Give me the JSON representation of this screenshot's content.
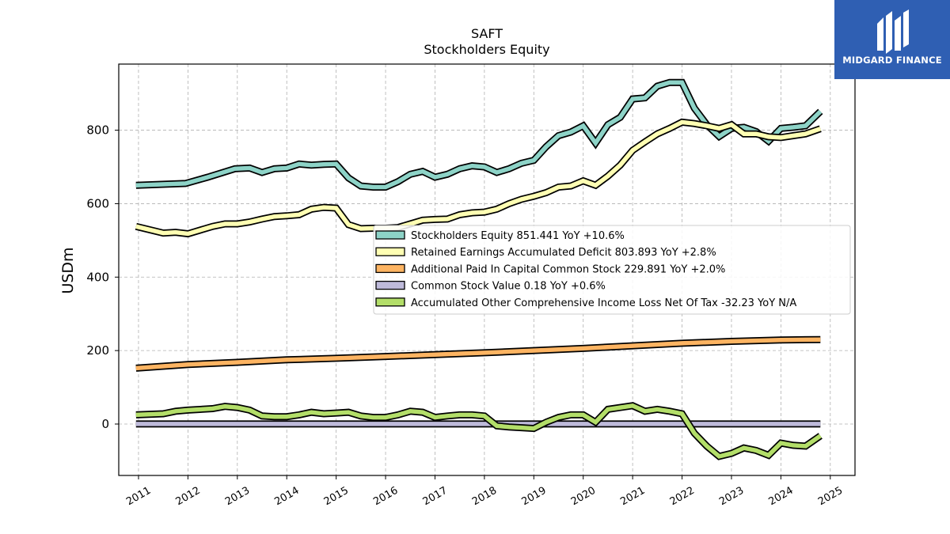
{
  "chart_data": {
    "type": "line",
    "title": "SAFT",
    "subtitle": "Stockholders  Equity",
    "ylabel": "USDm",
    "xlabel": "",
    "xlim": [
      2010.6,
      2025.5
    ],
    "ylim": [
      -140,
      980
    ],
    "x_ticks": [
      "2011",
      "2012",
      "2013",
      "2014",
      "2015",
      "2016",
      "2017",
      "2018",
      "2019",
      "2020",
      "2021",
      "2022",
      "2023",
      "2024",
      "2025"
    ],
    "y_ticks": [
      "0",
      "200",
      "400",
      "600",
      "800"
    ],
    "grid": true,
    "legend_position": "center-right",
    "series": [
      {
        "name": "Stockholders Equity",
        "legend_label": "Stockholders Equity  851.441 YoY +10.6%",
        "color": "#8dd3c7",
        "x": [
          2010.95,
          2011.95,
          2012.4,
          2012.95,
          2013.25,
          2013.5,
          2013.75,
          2014.0,
          2014.25,
          2014.5,
          2014.75,
          2015.0,
          2015.25,
          2015.5,
          2015.75,
          2016.0,
          2016.25,
          2016.5,
          2016.75,
          2017.0,
          2017.25,
          2017.5,
          2017.75,
          2018.0,
          2018.25,
          2018.5,
          2018.75,
          2019.0,
          2019.25,
          2019.5,
          2019.75,
          2020.0,
          2020.25,
          2020.5,
          2020.75,
          2021.0,
          2021.25,
          2021.5,
          2021.75,
          2022.0,
          2022.25,
          2022.5,
          2022.75,
          2023.0,
          2023.25,
          2023.5,
          2023.75,
          2024.0,
          2024.25,
          2024.5,
          2024.8
        ],
        "y": [
          650,
          655,
          672,
          695,
          697,
          685,
          695,
          697,
          708,
          705,
          707,
          708,
          670,
          648,
          645,
          645,
          660,
          680,
          688,
          672,
          680,
          695,
          703,
          700,
          685,
          695,
          710,
          718,
          755,
          785,
          795,
          812,
          765,
          815,
          835,
          885,
          888,
          920,
          930,
          930,
          860,
          815,
          783,
          805,
          808,
          796,
          770,
          805,
          808,
          812,
          851
        ]
      },
      {
        "name": "Retained Earnings Accumulated Deficit",
        "legend_label": "Retained Earnings Accumulated Deficit  803.893 YoY +2.8%",
        "color": "#ffffb3",
        "x": [
          2010.95,
          2011.5,
          2011.75,
          2012.0,
          2012.5,
          2012.75,
          2013.0,
          2013.25,
          2013.5,
          2013.75,
          2014.0,
          2014.25,
          2014.5,
          2014.75,
          2015.0,
          2015.25,
          2015.5,
          2015.75,
          2016.0,
          2016.25,
          2016.5,
          2016.75,
          2017.0,
          2017.25,
          2017.5,
          2017.75,
          2018.0,
          2018.25,
          2018.5,
          2018.75,
          2019.0,
          2019.25,
          2019.5,
          2019.75,
          2020.0,
          2020.25,
          2020.5,
          2020.75,
          2021.0,
          2021.25,
          2021.5,
          2021.75,
          2022.0,
          2022.25,
          2022.5,
          2022.75,
          2023.0,
          2023.25,
          2023.5,
          2023.75,
          2024.0,
          2024.25,
          2024.5,
          2024.8
        ],
        "y": [
          538,
          520,
          522,
          518,
          538,
          545,
          545,
          550,
          558,
          565,
          567,
          570,
          585,
          590,
          588,
          543,
          532,
          533,
          533,
          535,
          545,
          555,
          557,
          558,
          570,
          575,
          577,
          585,
          600,
          612,
          620,
          630,
          645,
          648,
          662,
          650,
          675,
          705,
          745,
          768,
          790,
          805,
          822,
          818,
          812,
          805,
          815,
          790,
          790,
          782,
          780,
          785,
          790,
          804
        ]
      },
      {
        "name": "Additional Paid In Capital Common Stock",
        "legend_label": "Additional Paid In Capital Common Stock  229.891 YoY +2.0%",
        "color": "#fdb462",
        "x": [
          2010.95,
          2012.0,
          2013.0,
          2014.0,
          2015.0,
          2016.0,
          2017.0,
          2018.0,
          2019.0,
          2020.0,
          2021.0,
          2022.0,
          2023.0,
          2024.0,
          2024.8
        ],
        "y": [
          152,
          162,
          168,
          175,
          179,
          184,
          189,
          194,
          200,
          206,
          213,
          220,
          225,
          229,
          230
        ]
      },
      {
        "name": "Common Stock Value",
        "legend_label": "Common Stock Value  0.18 YoY +0.6%",
        "color": "#bebada",
        "x": [
          2010.95,
          2024.8
        ],
        "y": [
          0.17,
          0.18
        ]
      },
      {
        "name": "Accumulated Other Comprehensive Income Loss Net Of Tax",
        "legend_label": "Accumulated Other Comprehensive Income Loss Net Of Tax  -32.23 YoY N/A",
        "color": "#b3de69",
        "x": [
          2010.95,
          2011.5,
          2011.75,
          2012.0,
          2012.5,
          2012.75,
          2013.0,
          2013.25,
          2013.5,
          2013.75,
          2014.0,
          2014.25,
          2014.5,
          2014.75,
          2015.0,
          2015.25,
          2015.5,
          2015.75,
          2016.0,
          2016.25,
          2016.5,
          2016.75,
          2017.0,
          2017.25,
          2017.5,
          2017.75,
          2018.0,
          2018.25,
          2018.5,
          2018.75,
          2019.0,
          2019.25,
          2019.5,
          2019.75,
          2020.0,
          2020.25,
          2020.5,
          2020.75,
          2021.0,
          2021.25,
          2021.5,
          2021.75,
          2022.0,
          2022.25,
          2022.5,
          2022.75,
          2023.0,
          2023.25,
          2023.5,
          2023.75,
          2024.0,
          2024.25,
          2024.5,
          2024.8
        ],
        "y": [
          25,
          28,
          35,
          38,
          42,
          48,
          45,
          38,
          22,
          20,
          20,
          25,
          32,
          28,
          30,
          32,
          22,
          18,
          18,
          25,
          35,
          32,
          18,
          22,
          25,
          25,
          22,
          -5,
          -8,
          -10,
          -12,
          5,
          18,
          25,
          25,
          5,
          40,
          45,
          50,
          35,
          40,
          35,
          28,
          -25,
          -60,
          -88,
          -80,
          -65,
          -72,
          -85,
          -52,
          -58,
          -60,
          -32
        ]
      }
    ]
  },
  "logo": {
    "text": "MIDGARD FINANCE",
    "color": "#2f5fb3",
    "icon": "midgard-logo-icon"
  }
}
